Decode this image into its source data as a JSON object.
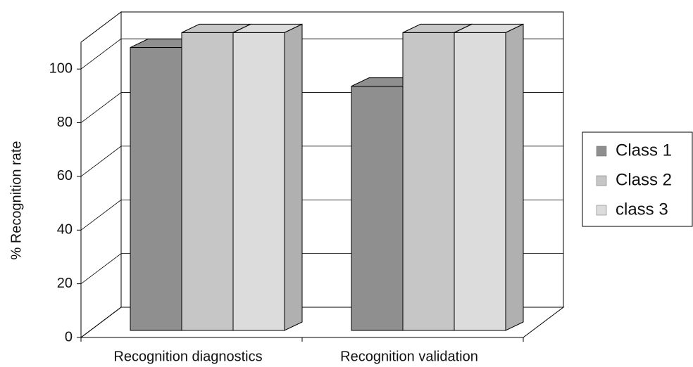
{
  "chart_data": {
    "type": "bar3d",
    "y_label": "% Recognition rate",
    "categories": [
      "Recognition diagnostics",
      "Recognition validation"
    ],
    "series": [
      {
        "name": "Class 1",
        "color": "#8f8f8f",
        "values": [
          95,
          82
        ]
      },
      {
        "name": "Class 2",
        "color": "#c6c6c6",
        "values": [
          100,
          100
        ]
      },
      {
        "name": "class 3",
        "color": "#dcdcdc",
        "values": [
          100,
          100
        ]
      }
    ],
    "ylim": [
      0,
      110
    ],
    "yticks": [
      0,
      20,
      40,
      60,
      80,
      100
    ],
    "grid": true,
    "legend": "right"
  }
}
